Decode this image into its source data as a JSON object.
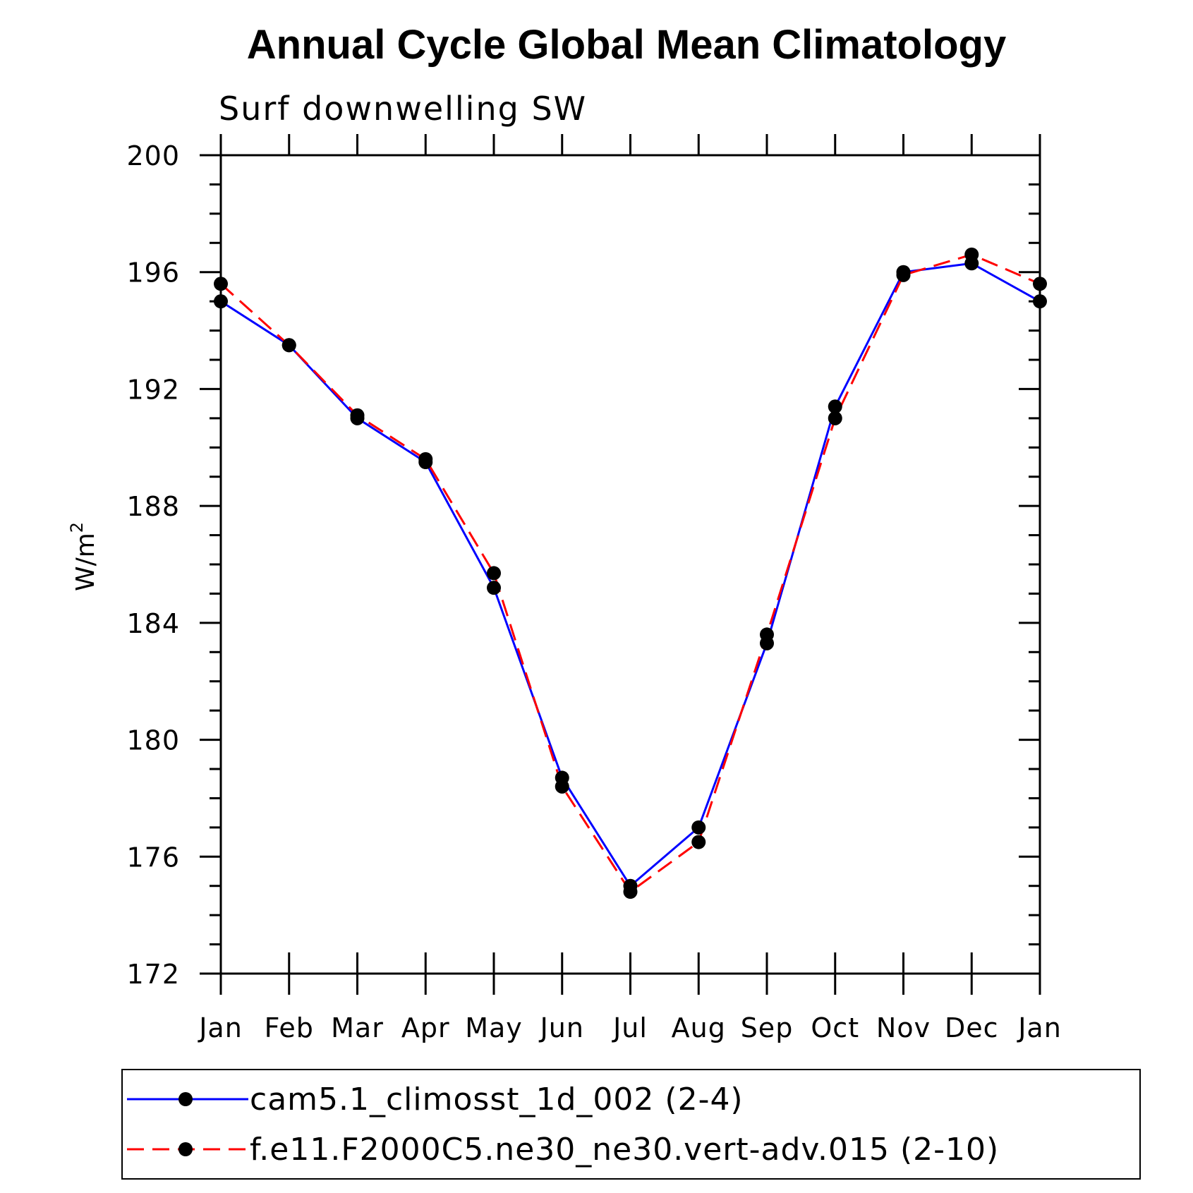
{
  "chart_data": {
    "type": "line",
    "title": "Annual Cycle Global Mean Climatology",
    "subtitle": "Surf downwelling SW",
    "ylabel": "W/m",
    "ylabel_sup": "2",
    "xlabel": "",
    "categories": [
      "Jan",
      "Feb",
      "Mar",
      "Apr",
      "May",
      "Jun",
      "Jul",
      "Aug",
      "Sep",
      "Oct",
      "Nov",
      "Dec",
      "Jan"
    ],
    "ylim": [
      172,
      200
    ],
    "yticks": [
      172,
      176,
      180,
      184,
      188,
      192,
      196,
      200
    ],
    "yticks_labels": [
      "172",
      "176",
      "180",
      "184",
      "188",
      "192",
      "196",
      "200"
    ],
    "grid": false,
    "legend_position": "bottom",
    "series": [
      {
        "name": "cam5.1_climosst_1d_002 (2-4)",
        "color": "#0000ff",
        "dash": "solid",
        "marker": "circle",
        "values": [
          195.0,
          193.5,
          191.0,
          189.5,
          185.2,
          178.7,
          175.0,
          177.0,
          183.3,
          191.4,
          196.0,
          196.3,
          195.0
        ]
      },
      {
        "name": "f.e11.F2000C5.ne30_ne30.vert-adv.015 (2-10)",
        "color": "#ff0000",
        "dash": "dashed",
        "marker": "circle",
        "values": [
          195.6,
          193.5,
          191.1,
          189.6,
          185.7,
          178.4,
          174.8,
          176.5,
          183.6,
          191.0,
          195.9,
          196.6,
          195.6
        ]
      }
    ]
  }
}
